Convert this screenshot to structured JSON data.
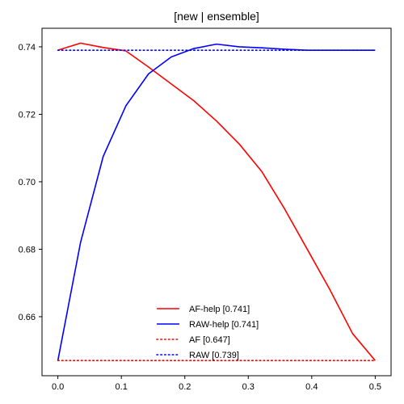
{
  "chart_data": {
    "type": "line",
    "title": "[new | ensemble]",
    "xlabel": "",
    "ylabel": "",
    "xlim": [
      -0.025,
      0.525
    ],
    "ylim": [
      0.6425,
      0.7455
    ],
    "xticks": [
      0.0,
      0.1,
      0.2,
      0.3,
      0.4,
      0.5
    ],
    "xtick_labels": [
      "0.0",
      "0.1",
      "0.2",
      "0.3",
      "0.4",
      "0.5"
    ],
    "yticks": [
      0.66,
      0.68,
      0.7,
      0.72,
      0.74
    ],
    "ytick_labels": [
      "0.66",
      "0.68",
      "0.70",
      "0.72",
      "0.74"
    ],
    "grid": false,
    "legend_position": "lower-center",
    "series": [
      {
        "name": "AF-help [0.741]",
        "color": "#ff0000",
        "style": "solid",
        "x": [
          0.0,
          0.0357,
          0.0714,
          0.1071,
          0.1429,
          0.1786,
          0.2143,
          0.25,
          0.2857,
          0.3214,
          0.3571,
          0.3929,
          0.4286,
          0.4643,
          0.5
        ],
        "y": [
          0.739,
          0.7411,
          0.7398,
          0.7388,
          0.734,
          0.729,
          0.724,
          0.718,
          0.7112,
          0.703,
          0.692,
          0.68,
          0.668,
          0.655,
          0.647
        ]
      },
      {
        "name": "RAW-help [0.741]",
        "color": "#0000ff",
        "style": "solid",
        "x": [
          0.0,
          0.0357,
          0.0714,
          0.1071,
          0.1429,
          0.1786,
          0.2143,
          0.25,
          0.2857,
          0.3214,
          0.3571,
          0.3929,
          0.4286,
          0.4643,
          0.5
        ],
        "y": [
          0.647,
          0.682,
          0.7075,
          0.7225,
          0.732,
          0.737,
          0.7395,
          0.7408,
          0.74,
          0.7397,
          0.7393,
          0.739,
          0.739,
          0.739,
          0.739
        ]
      },
      {
        "name": "AF [0.647]",
        "color": "#ff0000",
        "style": "dotted",
        "x": [
          0.0,
          0.5
        ],
        "y": [
          0.647,
          0.647
        ]
      },
      {
        "name": "RAW [0.739]",
        "color": "#0000ff",
        "style": "dotted",
        "x": [
          0.0,
          0.5
        ],
        "y": [
          0.739,
          0.739
        ]
      }
    ]
  }
}
